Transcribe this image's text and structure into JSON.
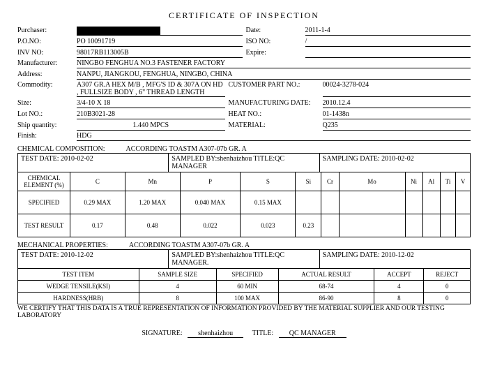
{
  "title": "CERTIFICATE  OF  INSPECTION",
  "header": {
    "purchaser_label": "Purchaser:",
    "date_label": "Date:",
    "date": "2011-1-4",
    "pono_label": "P.O.NO:",
    "pono": "PO 10091719",
    "isono_label": "ISO NO:",
    "isono": "/",
    "invno_label": "INV NO:",
    "invno": "98017RB113005B",
    "expire_label": "Expire:",
    "expire": "",
    "manufacturer_label": "Manufacturer:",
    "manufacturer": "NINGBO FENGHUA NO.3 FASTENER FACTORY",
    "address_label": "Address:",
    "address": "NANPU, JIANGKOU, FENGHUA, NINGBO, CHINA",
    "commodity_label": "Commodity:",
    "commodity": "A307 GR.A HEX M/B , MFG'S ID & 307A ON HD , FULLSIZE BODY , 6\" THREAD LENGTH",
    "custpart_label": "CUSTOMER PART NO.:",
    "custpart": "00024-3278-024",
    "size_label": "Size:",
    "size": "3/4-10 X 18",
    "mfgdate_label": "MANUFACTURING DATE:",
    "mfgdate": "2010.12.4",
    "lotno_label": "Lot NO.:",
    "lotno": "210B3021-28",
    "heatno_label": "HEAT NO.:",
    "heatno": "01-1438n",
    "shipqty_label": "Ship quantity:",
    "shipqty": "1.440  MPCS",
    "material_label": "MATERIAL:",
    "material": "Q235",
    "finish_label": "Finish:",
    "finish": "HDG"
  },
  "chem": {
    "section": "CHEMICAL COMPOSITION:",
    "according": "ACCORDING  TOASTM  A307-07b  GR. A",
    "testdate": "TEST DATE: 2010-02-02",
    "sampledby": "SAMPLED BY:shenhaizhou    TITLE:QC MANAGER",
    "sampdate": "SAMPLING DATE: 2010-02-02",
    "cols": [
      "CHEMICAL ELEMENT (%)",
      "C",
      "Mn",
      "P",
      "S",
      "Si",
      "Cr",
      "Mo",
      "Ni",
      "Al",
      "Ti",
      "V"
    ],
    "spec_label": "SPECIFIED",
    "spec": [
      "0.29 MAX",
      "1.20 MAX",
      "0.040 MAX",
      "0.15 MAX",
      "",
      "",
      "",
      "",
      "",
      "",
      ""
    ],
    "result_label": "TEST RESULT",
    "result": [
      "0.17",
      "0.48",
      "0.022",
      "0.023",
      "0.23",
      "",
      "",
      "",
      "",
      "",
      ""
    ]
  },
  "mech": {
    "section": "MECHANICAL PROPERTIES:",
    "according": "ACCORDING  TOASTM  A307-07b  GR. A",
    "testdate": "TEST DATE: 2010-12-02",
    "sampledby": "SAMPLED BY:shenhaizhou    TITLE:QC MANAGER.",
    "sampdate": "SAMPLING DATE: 2010-12-02",
    "cols": [
      "TEST ITEM",
      "SAMPLE SIZE",
      "SPECIFIED",
      "ACTUAL RESULT",
      "ACCEPT",
      "REJECT"
    ],
    "rows": [
      [
        "WEDGE TENSILE(KSI)",
        "4",
        "60 MIN",
        "68-74",
        "4",
        "0"
      ],
      [
        "HARDNESS(HRB)",
        "8",
        "100 MAX",
        "86-90",
        "8",
        "0"
      ]
    ]
  },
  "cert": "WE CERTIFY THAT THIS DATA IS A TRUE REPRESENTATION OF INFORMATION PROVIDED BY THE MATERIAL SUPPLIER AND OUR TESTING LABORATORY",
  "sig": {
    "siglabel": "SIGNATURE:",
    "signame": "shenhaizhou",
    "titlelabel": "TITLE:",
    "titleval": "QC MANAGER"
  }
}
